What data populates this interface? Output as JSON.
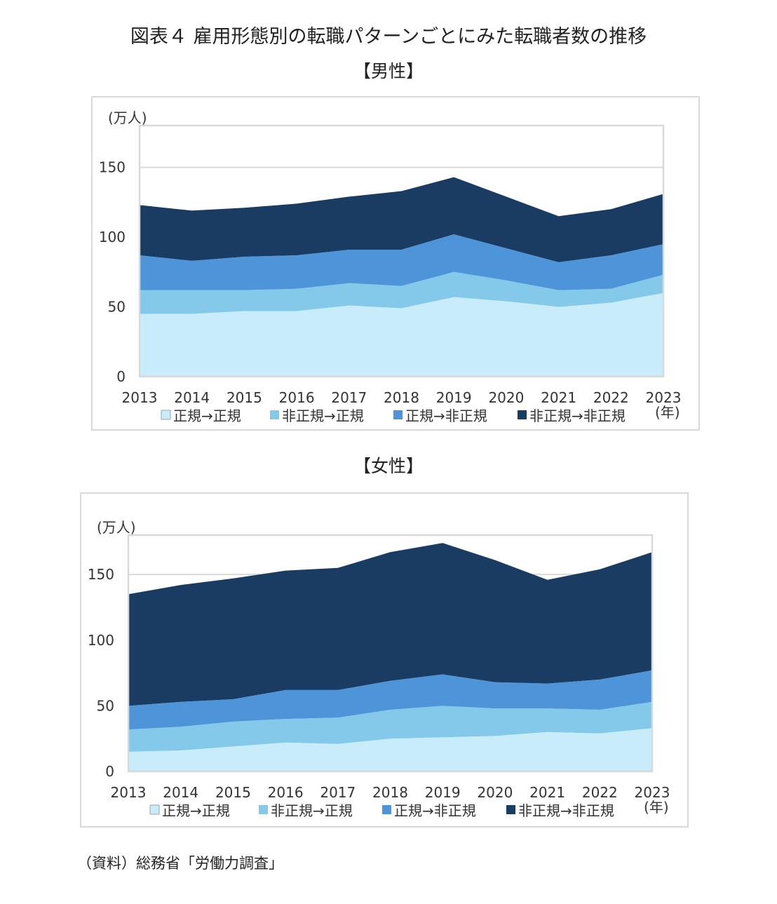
{
  "figure": {
    "title": "図表４ 雇用形態別の転職パターンごとにみた転職者数の推移",
    "source": "（資料）総務省「労働力調査」"
  },
  "colors": {
    "regular_to_regular": "#c9ecfa",
    "nonregular_to_regular": "#84c9ea",
    "regular_to_nonregular": "#4d94d8",
    "nonregular_to_nonregular": "#1a3c63",
    "gridline": "#d9d9d9",
    "plot_border": "#d9d9d9"
  },
  "chart_data": [
    {
      "type": "area",
      "stacked": true,
      "subtitle": "【男性】",
      "y_unit_label": "(万人)",
      "x_unit_label": "(年)",
      "x": [
        "2013",
        "2014",
        "2015",
        "2016",
        "2017",
        "2018",
        "2019",
        "2020",
        "2021",
        "2022",
        "2023"
      ],
      "ylim": [
        0,
        180
      ],
      "yticks": [
        0,
        50,
        100,
        150
      ],
      "grid": true,
      "legend_position": "bottom",
      "series": [
        {
          "name": "正規→正規",
          "color_key": "regular_to_regular",
          "values": [
            45,
            45,
            47,
            47,
            51,
            49,
            57,
            54,
            50,
            53,
            60
          ]
        },
        {
          "name": "非正規→正規",
          "color_key": "nonregular_to_regular",
          "values": [
            17,
            17,
            15,
            16,
            16,
            16,
            18,
            15,
            12,
            10,
            13
          ]
        },
        {
          "name": "正規→非正規",
          "color_key": "regular_to_nonregular",
          "values": [
            25,
            21,
            24,
            24,
            24,
            26,
            27,
            23,
            20,
            24,
            22
          ]
        },
        {
          "name": "非正規→非正規",
          "color_key": "nonregular_to_nonregular",
          "values": [
            36,
            36,
            35,
            37,
            38,
            42,
            41,
            37,
            33,
            33,
            36
          ]
        }
      ]
    },
    {
      "type": "area",
      "stacked": true,
      "subtitle": "【女性】",
      "y_unit_label": "(万人)",
      "x_unit_label": "(年)",
      "x": [
        "2013",
        "2014",
        "2015",
        "2016",
        "2017",
        "2018",
        "2019",
        "2020",
        "2021",
        "2022",
        "2023"
      ],
      "ylim": [
        0,
        180
      ],
      "yticks": [
        0,
        50,
        100,
        150
      ],
      "grid": true,
      "legend_position": "bottom",
      "series": [
        {
          "name": "正規→正規",
          "color_key": "regular_to_regular",
          "values": [
            15,
            16,
            19,
            22,
            21,
            25,
            26,
            27,
            30,
            29,
            33
          ]
        },
        {
          "name": "非正規→正規",
          "color_key": "nonregular_to_regular",
          "values": [
            17,
            18,
            19,
            18,
            20,
            22,
            24,
            21,
            18,
            18,
            20
          ]
        },
        {
          "name": "正規→非正規",
          "color_key": "regular_to_nonregular",
          "values": [
            18,
            19,
            17,
            22,
            21,
            22,
            24,
            20,
            19,
            23,
            24
          ]
        },
        {
          "name": "非正規→非正規",
          "color_key": "nonregular_to_nonregular",
          "values": [
            85,
            89,
            92,
            91,
            93,
            98,
            100,
            93,
            79,
            84,
            90
          ]
        }
      ]
    }
  ]
}
